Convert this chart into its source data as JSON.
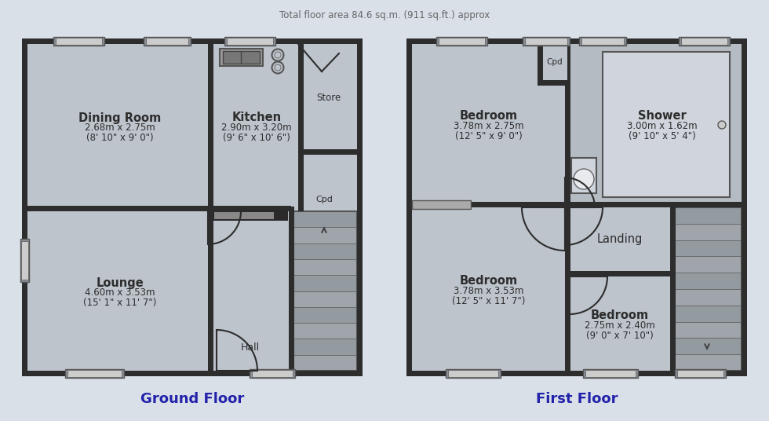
{
  "title": "Total floor area 84.6 sq.m. (911 sq.ft.) approx",
  "title_color": "#666666",
  "title_fontsize": 8.5,
  "bg_color": "#d9e0e8",
  "wall_color": "#2d2d2d",
  "room_color": "#bec4cc",
  "room_color2": "#c8cdd4",
  "dark_color": "#888888",
  "stair_light": "#b0b0b0",
  "stair_dark": "#909090",
  "text_color": "#2d2d2d",
  "label_color": "#2222aa",
  "ground_floor_label": "Ground Floor",
  "first_floor_label": "First Floor"
}
